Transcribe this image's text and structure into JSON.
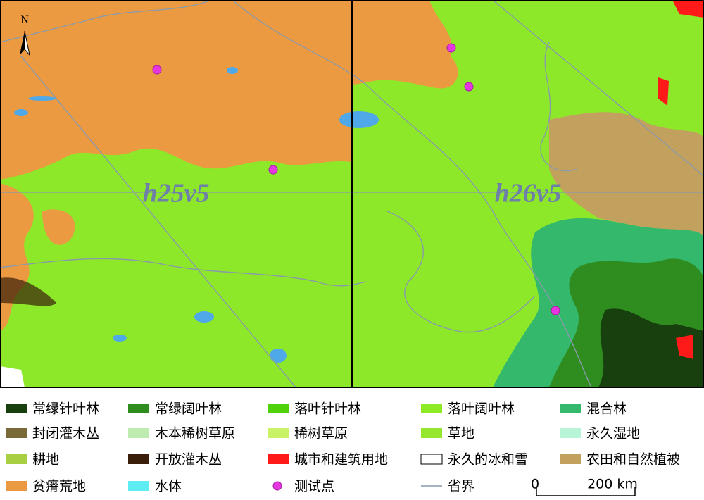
{
  "map": {
    "tiles": [
      "h25v5",
      "h26v5"
    ],
    "north": "N",
    "legend": [
      {
        "label": "常绿针叶林",
        "color": "#17400e",
        "kind": "fill"
      },
      {
        "label": "常绿阔叶林",
        "color": "#2f8c1f",
        "kind": "fill"
      },
      {
        "label": "落叶针叶林",
        "color": "#4fd10c",
        "kind": "fill"
      },
      {
        "label": "落叶阔叶林",
        "color": "#8ceb24",
        "kind": "fill"
      },
      {
        "label": "混合林",
        "color": "#33b86c",
        "kind": "fill"
      },
      {
        "label": "封闭灌木丛",
        "color": "#7a6a38",
        "kind": "fill"
      },
      {
        "label": "木本稀树草原",
        "color": "#bdebb0",
        "kind": "fill"
      },
      {
        "label": "稀树草原",
        "color": "#c9f266",
        "kind": "fill"
      },
      {
        "label": "草地",
        "color": "#94e62e",
        "kind": "fill"
      },
      {
        "label": "永久湿地",
        "color": "#b8f5d6",
        "kind": "fill"
      },
      {
        "label": "耕地",
        "color": "#a8cf42",
        "kind": "fill"
      },
      {
        "label": "开放灌木丛",
        "color": "#3a1e0a",
        "kind": "fill"
      },
      {
        "label": "城市和建筑用地",
        "color": "#ff1a1a",
        "kind": "fill"
      },
      {
        "label": "永久的冰和雪",
        "color": "#ffffff",
        "kind": "fill"
      },
      {
        "label": "农田和自然植被",
        "color": "#c2a15e",
        "kind": "fill"
      },
      {
        "label": "贫瘠荒地",
        "color": "#eb9a42",
        "kind": "fill"
      },
      {
        "label": "水体",
        "color": "#5cecf2",
        "kind": "fill"
      },
      {
        "label": "测试点",
        "color": "#e636e0",
        "kind": "point"
      },
      {
        "label": "省界",
        "color": "#8a9aaa",
        "kind": "line"
      }
    ],
    "scale": {
      "start": "0",
      "end": "200 km"
    }
  }
}
